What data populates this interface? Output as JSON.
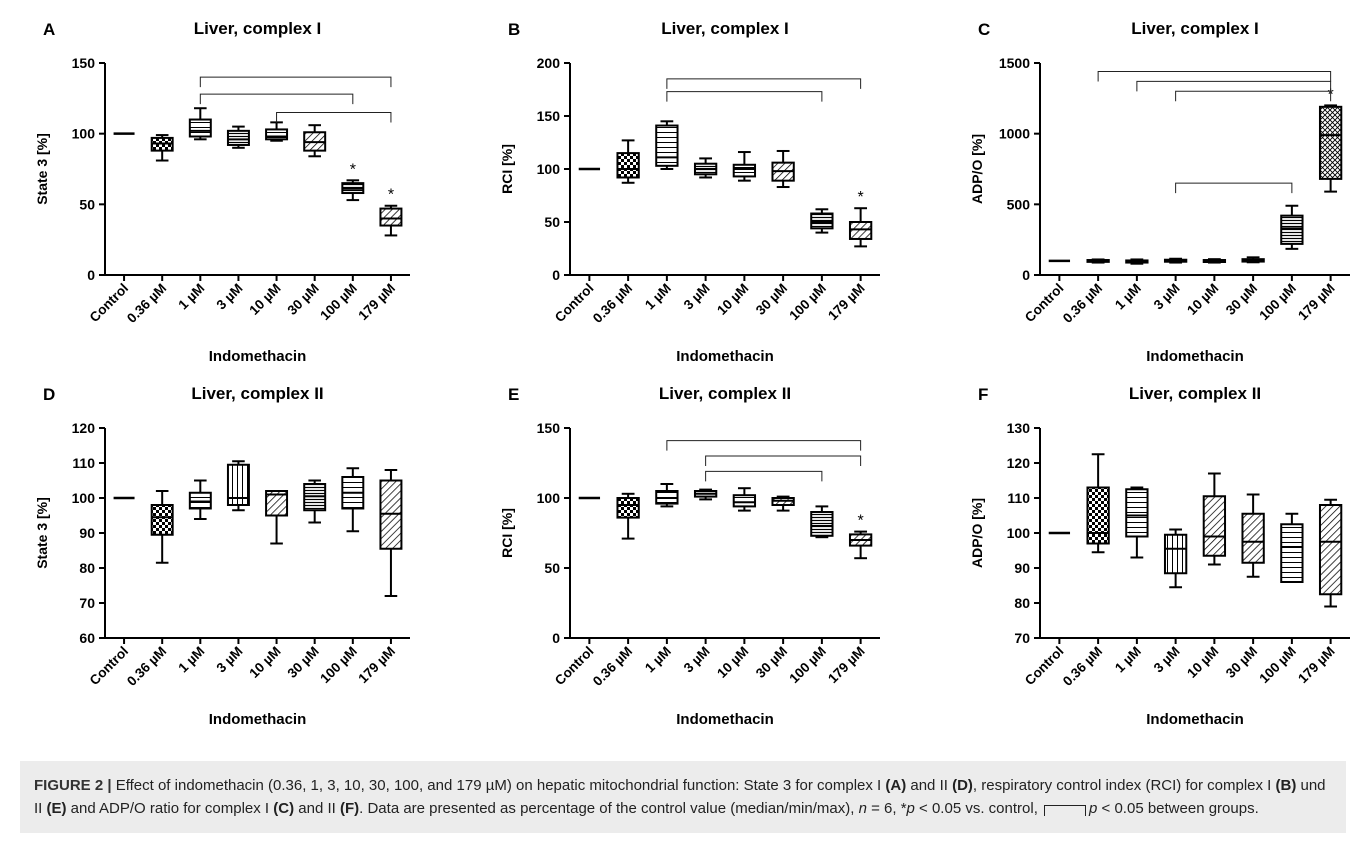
{
  "chart_data": [
    {
      "type": "box",
      "panel_letter": "A",
      "title": "Liver, complex I",
      "ylabel": "State 3  [%]",
      "xlabel": "Indomethacin",
      "categories": [
        "Control",
        "0.36 µM",
        "1 µM",
        "3 µM",
        "10 µM",
        "30 µM",
        "100 µM",
        "179 µM"
      ],
      "yticks": [
        0,
        50,
        100,
        150
      ],
      "ylim": [
        0,
        150
      ],
      "boxes": [
        {
          "min": 100,
          "q1": 100,
          "median": 100,
          "q3": 100,
          "max": 100,
          "pattern": "none"
        },
        {
          "min": 81,
          "q1": 88,
          "median": 93,
          "q3": 97,
          "max": 99,
          "pattern": "checker"
        },
        {
          "min": 96,
          "q1": 98,
          "median": 102,
          "q3": 110,
          "max": 118,
          "pattern": "hlines"
        },
        {
          "min": 90,
          "q1": 92,
          "median": 96,
          "q3": 102,
          "max": 105,
          "pattern": "dense-h"
        },
        {
          "min": 95,
          "q1": 96,
          "median": 98,
          "q3": 103,
          "max": 108,
          "pattern": "hlines"
        },
        {
          "min": 84,
          "q1": 88,
          "median": 94,
          "q3": 101,
          "max": 106,
          "pattern": "diag"
        },
        {
          "min": 53,
          "q1": 58,
          "median": 61,
          "q3": 65,
          "max": 67,
          "pattern": "dense-h"
        },
        {
          "min": 28,
          "q1": 35,
          "median": 40,
          "q3": 47,
          "max": 49,
          "pattern": "diag"
        }
      ],
      "stars": [
        {
          "index": 6,
          "text": "*"
        },
        {
          "index": 7,
          "text": "*"
        }
      ],
      "brackets": [
        {
          "from": 2,
          "to": 7,
          "y": 140
        },
        {
          "from": 2,
          "to": 6,
          "y": 128
        },
        {
          "from": 4,
          "to": 7,
          "y": 115
        }
      ]
    },
    {
      "type": "box",
      "panel_letter": "B",
      "title": "Liver, complex I",
      "ylabel": "RCI  [%]",
      "xlabel": "Indomethacin",
      "categories": [
        "Control",
        "0.36 µM",
        "1 µM",
        "3 µM",
        "10 µM",
        "30 µM",
        "100 µM",
        "179 µM"
      ],
      "yticks": [
        0,
        50,
        100,
        150,
        200
      ],
      "ylim": [
        0,
        200
      ],
      "boxes": [
        {
          "min": 100,
          "q1": 100,
          "median": 100,
          "q3": 100,
          "max": 100,
          "pattern": "none"
        },
        {
          "min": 87,
          "q1": 92,
          "median": 100,
          "q3": 115,
          "max": 127,
          "pattern": "checker"
        },
        {
          "min": 100,
          "q1": 103,
          "median": 111,
          "q3": 141,
          "max": 145,
          "pattern": "hlines"
        },
        {
          "min": 92,
          "q1": 95,
          "median": 100,
          "q3": 105,
          "max": 110,
          "pattern": "dense-h"
        },
        {
          "min": 89,
          "q1": 93,
          "median": 100,
          "q3": 104,
          "max": 116,
          "pattern": "hlines"
        },
        {
          "min": 83,
          "q1": 89,
          "median": 98,
          "q3": 106,
          "max": 117,
          "pattern": "diag"
        },
        {
          "min": 40,
          "q1": 44,
          "median": 50,
          "q3": 58,
          "max": 62,
          "pattern": "dense-h"
        },
        {
          "min": 27,
          "q1": 34,
          "median": 43,
          "q3": 50,
          "max": 63,
          "pattern": "diag"
        }
      ],
      "stars": [
        {
          "index": 7,
          "text": "*"
        }
      ],
      "brackets": [
        {
          "from": 2,
          "to": 7,
          "y": 185
        },
        {
          "from": 2,
          "to": 6,
          "y": 173
        }
      ]
    },
    {
      "type": "box",
      "panel_letter": "C",
      "title": "Liver, complex I",
      "ylabel": "ADP/O  [%]",
      "xlabel": "Indomethacin",
      "categories": [
        "Control",
        "0.36 µM",
        "1 µM",
        "3 µM",
        "10 µM",
        "30 µM",
        "100 µM",
        "179 µM"
      ],
      "yticks": [
        0,
        500,
        1000,
        1500
      ],
      "ylim": [
        0,
        1500
      ],
      "boxes": [
        {
          "min": 100,
          "q1": 100,
          "median": 100,
          "q3": 100,
          "max": 100,
          "pattern": "none"
        },
        {
          "min": 88,
          "q1": 93,
          "median": 100,
          "q3": 106,
          "max": 110,
          "pattern": "checker"
        },
        {
          "min": 80,
          "q1": 88,
          "median": 95,
          "q3": 103,
          "max": 110,
          "pattern": "hlines"
        },
        {
          "min": 88,
          "q1": 94,
          "median": 100,
          "q3": 108,
          "max": 115,
          "pattern": "dense-h"
        },
        {
          "min": 88,
          "q1": 92,
          "median": 100,
          "q3": 106,
          "max": 112,
          "pattern": "hlines"
        },
        {
          "min": 90,
          "q1": 95,
          "median": 100,
          "q3": 112,
          "max": 125,
          "pattern": "diag"
        },
        {
          "min": 185,
          "q1": 220,
          "median": 330,
          "q3": 420,
          "max": 490,
          "pattern": "dense-h"
        },
        {
          "min": 590,
          "q1": 680,
          "median": 990,
          "q3": 1190,
          "max": 1200,
          "pattern": "cross"
        }
      ],
      "stars": [
        {
          "index": 7,
          "text": "*"
        }
      ],
      "brackets": [
        {
          "from": 1,
          "to": 7,
          "y": 1440
        },
        {
          "from": 2,
          "to": 7,
          "y": 1370
        },
        {
          "from": 3,
          "to": 7,
          "y": 1300
        },
        {
          "from": 3,
          "to": 6,
          "y": 650
        }
      ]
    },
    {
      "type": "box",
      "panel_letter": "D",
      "title": "Liver, complex II",
      "ylabel": "State 3  [%]",
      "xlabel": "Indomethacin",
      "categories": [
        "Control",
        "0.36 µM",
        "1 µM",
        "3 µM",
        "10 µM",
        "30 µM",
        "100 µM",
        "179 µM"
      ],
      "yticks": [
        60,
        70,
        80,
        90,
        100,
        110,
        120
      ],
      "ylim": [
        60,
        120
      ],
      "boxes": [
        {
          "min": 100,
          "q1": 100,
          "median": 100,
          "q3": 100,
          "max": 100,
          "pattern": "none"
        },
        {
          "min": 81.5,
          "q1": 89.5,
          "median": 94.5,
          "q3": 98,
          "max": 102,
          "pattern": "checker"
        },
        {
          "min": 94,
          "q1": 97,
          "median": 99,
          "q3": 101.5,
          "max": 105,
          "pattern": "hlines"
        },
        {
          "min": 96.5,
          "q1": 98,
          "median": 100,
          "q3": 109.5,
          "max": 110.5,
          "pattern": "vlines"
        },
        {
          "min": 87,
          "q1": 95,
          "median": 101,
          "q3": 102,
          "max": 102,
          "pattern": "diag"
        },
        {
          "min": 93,
          "q1": 96.5,
          "median": 100.5,
          "q3": 104,
          "max": 105,
          "pattern": "dense-h"
        },
        {
          "min": 90.5,
          "q1": 97,
          "median": 101.5,
          "q3": 106,
          "max": 108.5,
          "pattern": "hlines"
        },
        {
          "min": 72,
          "q1": 85.5,
          "median": 95.5,
          "q3": 105,
          "max": 108,
          "pattern": "diag"
        }
      ],
      "stars": [],
      "brackets": []
    },
    {
      "type": "box",
      "panel_letter": "E",
      "title": "Liver, complex II",
      "ylabel": "RCI  [%]",
      "xlabel": "Indomethacin",
      "categories": [
        "Control",
        "0.36 µM",
        "1 µM",
        "3 µM",
        "10 µM",
        "30 µM",
        "100 µM",
        "179 µM"
      ],
      "yticks": [
        0,
        50,
        100,
        150
      ],
      "ylim": [
        0,
        150
      ],
      "boxes": [
        {
          "min": 100,
          "q1": 100,
          "median": 100,
          "q3": 100,
          "max": 100,
          "pattern": "none"
        },
        {
          "min": 71,
          "q1": 86,
          "median": 95,
          "q3": 100,
          "max": 103,
          "pattern": "checker"
        },
        {
          "min": 94,
          "q1": 96,
          "median": 100,
          "q3": 105,
          "max": 110,
          "pattern": "hlines"
        },
        {
          "min": 99,
          "q1": 101,
          "median": 103,
          "q3": 105,
          "max": 106,
          "pattern": "dense-h"
        },
        {
          "min": 91,
          "q1": 94,
          "median": 97,
          "q3": 102,
          "max": 107,
          "pattern": "hlines"
        },
        {
          "min": 91,
          "q1": 95,
          "median": 98,
          "q3": 100,
          "max": 101,
          "pattern": "diag"
        },
        {
          "min": 72,
          "q1": 73,
          "median": 80,
          "q3": 90,
          "max": 94,
          "pattern": "dense-h"
        },
        {
          "min": 57,
          "q1": 66,
          "median": 70,
          "q3": 74,
          "max": 76,
          "pattern": "diag"
        }
      ],
      "stars": [
        {
          "index": 7,
          "text": "*"
        }
      ],
      "brackets": [
        {
          "from": 2,
          "to": 7,
          "y": 141
        },
        {
          "from": 3,
          "to": 7,
          "y": 130
        },
        {
          "from": 3,
          "to": 6,
          "y": 119
        }
      ]
    },
    {
      "type": "box",
      "panel_letter": "F",
      "title": "Liver, complex II",
      "ylabel": "ADP/O  [%]",
      "xlabel": "Indomethacin",
      "categories": [
        "Control",
        "0.36 µM",
        "1 µM",
        "3 µM",
        "10 µM",
        "30 µM",
        "100 µM",
        "179 µM"
      ],
      "yticks": [
        70,
        80,
        90,
        100,
        110,
        120,
        130
      ],
      "ylim": [
        70,
        130
      ],
      "boxes": [
        {
          "min": 100,
          "q1": 100,
          "median": 100,
          "q3": 100,
          "max": 100,
          "pattern": "none"
        },
        {
          "min": 94.5,
          "q1": 97,
          "median": 100,
          "q3": 113,
          "max": 122.5,
          "pattern": "checker"
        },
        {
          "min": 93,
          "q1": 99,
          "median": 105,
          "q3": 112.5,
          "max": 113,
          "pattern": "hlines"
        },
        {
          "min": 84.5,
          "q1": 88.5,
          "median": 95.5,
          "q3": 99.5,
          "max": 101,
          "pattern": "vlines"
        },
        {
          "min": 91,
          "q1": 93.5,
          "median": 99,
          "q3": 110.5,
          "max": 117,
          "pattern": "diag"
        },
        {
          "min": 87.5,
          "q1": 91.5,
          "median": 97.5,
          "q3": 105.5,
          "max": 111,
          "pattern": "diag"
        },
        {
          "min": 86,
          "q1": 86,
          "median": 96,
          "q3": 102.5,
          "max": 105.5,
          "pattern": "hlines"
        },
        {
          "min": 79,
          "q1": 82.5,
          "median": 97.5,
          "q3": 108,
          "max": 109.5,
          "pattern": "diag"
        }
      ],
      "stars": [],
      "brackets": []
    }
  ],
  "caption": {
    "figure_label": "FIGURE 2 |",
    "part1": " Effect of indomethacin (0.36, 1, 3, 10, 30, 100, and 179 µM) on hepatic mitochondrial function: State 3 for complex I ",
    "refA": "(A)",
    "part2": " and II ",
    "refD": "(D)",
    "part3": ", respiratory control index (RCI) for complex I ",
    "refB": "(B)",
    "part4": " und II ",
    "refE": "(E)",
    "part5": " and ADP/O ratio for complex I ",
    "refC": "(C)",
    "part6": " and II ",
    "refF": "(F)",
    "part7": ". Data are presented as percentage of the control value (median/min/max), ",
    "n_var": "n",
    "part8": " = 6, *",
    "p_var1": "p",
    "part9": " < 0.05 vs. control, ",
    "p_var2": "p",
    "part10": " < 0.05 between groups."
  }
}
